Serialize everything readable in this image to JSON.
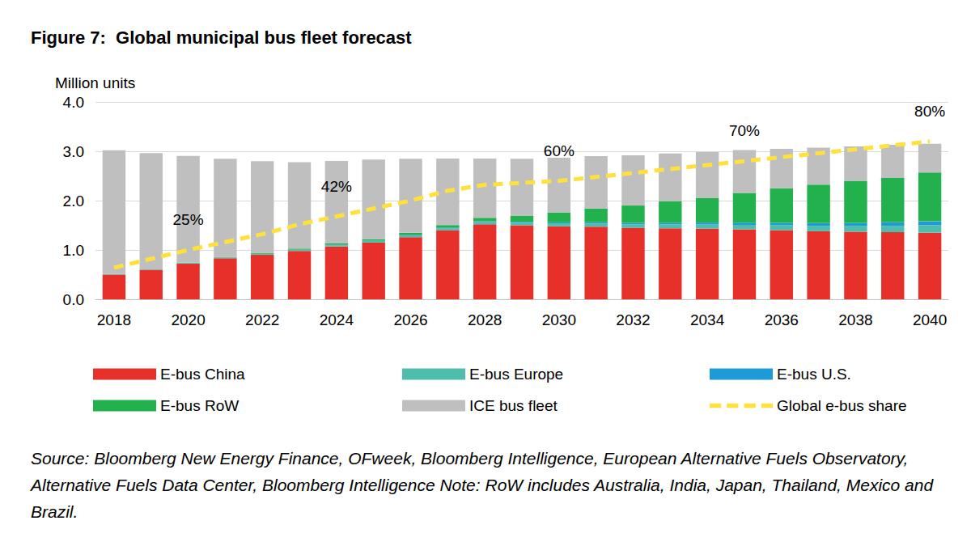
{
  "chart_data": {
    "type": "bar",
    "title": "Figure 7:  Global municipal bus fleet forecast",
    "y_label": "Million units",
    "source": "Source: Bloomberg New Energy Finance, OFweek, Bloomberg Intelligence, European Alternative Fuels Observatory, Alternative Fuels Data Center, Bloomberg Intelligence Note: RoW includes Australia, India, Japan, Thailand, Mexico and Brazil.",
    "categories": [
      "2018",
      null,
      "2020",
      null,
      "2022",
      null,
      "2024",
      null,
      "2026",
      null,
      "2028",
      null,
      "2030",
      null,
      "2032",
      null,
      "2034",
      null,
      "2036",
      null,
      "2038",
      null,
      "2040"
    ],
    "stacked": true,
    "grid": true,
    "legend": "bottom",
    "ylim": [
      0,
      4
    ],
    "yticks": [
      {
        "value": 0,
        "label": "0.0"
      },
      {
        "value": 1,
        "label": "1.0"
      },
      {
        "value": 2,
        "label": "2.0"
      },
      {
        "value": 3,
        "label": "3.0"
      },
      {
        "value": 4,
        "label": "4.0"
      }
    ],
    "y2lim": [
      0,
      100
    ],
    "series": [
      {
        "name": "E-bus China",
        "color": "#E8302A",
        "values": [
          0.5,
          0.6,
          0.72,
          0.83,
          0.9,
          0.98,
          1.07,
          1.15,
          1.26,
          1.4,
          1.52,
          1.5,
          1.48,
          1.47,
          1.45,
          1.44,
          1.43,
          1.42,
          1.4,
          1.38,
          1.37,
          1.36,
          1.35
        ]
      },
      {
        "name": "E-bus Europe",
        "color": "#4DBDAE",
        "values": [
          0.005,
          0.007,
          0.01,
          0.012,
          0.015,
          0.02,
          0.025,
          0.03,
          0.035,
          0.04,
          0.045,
          0.05,
          0.06,
          0.065,
          0.07,
          0.08,
          0.085,
          0.09,
          0.1,
          0.11,
          0.12,
          0.13,
          0.15
        ]
      },
      {
        "name": "E-bus U.S.",
        "color": "#1E9BD7",
        "values": [
          0.002,
          0.003,
          0.004,
          0.005,
          0.006,
          0.007,
          0.008,
          0.01,
          0.012,
          0.014,
          0.016,
          0.018,
          0.02,
          0.025,
          0.03,
          0.035,
          0.04,
          0.045,
          0.05,
          0.055,
          0.06,
          0.07,
          0.08
        ]
      },
      {
        "name": "E-bus RoW",
        "color": "#22B14C",
        "values": [
          0.005,
          0.005,
          0.01,
          0.01,
          0.02,
          0.02,
          0.03,
          0.03,
          0.04,
          0.05,
          0.07,
          0.12,
          0.2,
          0.28,
          0.35,
          0.43,
          0.5,
          0.6,
          0.7,
          0.78,
          0.85,
          0.9,
          0.99
        ]
      },
      {
        "name": "ICE bus fleet",
        "color": "#BFBFBF",
        "values": [
          2.51,
          2.35,
          2.16,
          1.99,
          1.86,
          1.75,
          1.67,
          1.61,
          1.5,
          1.35,
          1.2,
          1.16,
          1.11,
          1.06,
          1.02,
          0.97,
          0.93,
          0.87,
          0.8,
          0.75,
          0.7,
          0.67,
          0.58
        ]
      },
      {
        "name": "Global e-bus share",
        "color": "#FFE03C",
        "type": "line",
        "axis": "y2",
        "line_style": "dashed",
        "marker": "none",
        "values": [
          16,
          20.5,
          25,
          29,
          33,
          38,
          42,
          46,
          50,
          55,
          58,
          59,
          60,
          62,
          64,
          66,
          68,
          70,
          72,
          74,
          76,
          78,
          80
        ],
        "value_labels": [
          null,
          null,
          "25%",
          null,
          null,
          null,
          "42%",
          null,
          null,
          null,
          null,
          null,
          "60%",
          null,
          null,
          null,
          null,
          "70%",
          null,
          null,
          null,
          null,
          "80%"
        ]
      }
    ]
  }
}
